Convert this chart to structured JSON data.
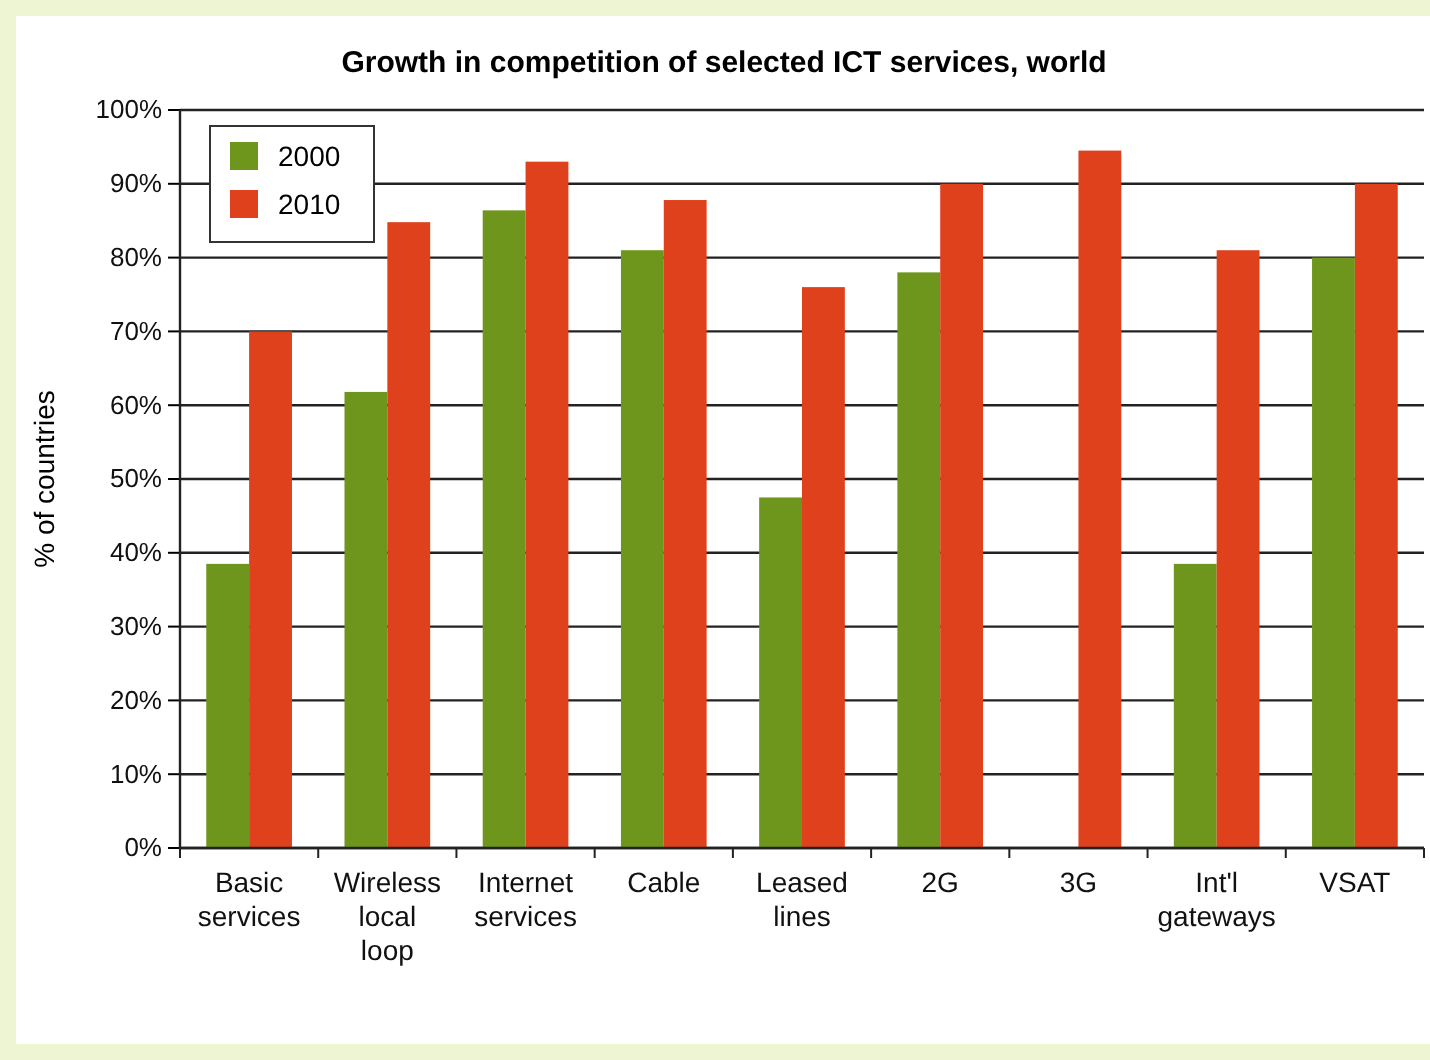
{
  "chart_data": {
    "type": "bar",
    "title": "Growth in competition of selected ICT services, world",
    "ylabel": "% of countries",
    "categories": [
      "Basic services",
      "Wireless local loop",
      "Internet services",
      "Cable",
      "Leased lines",
      "2G",
      "3G",
      "Int'l gateways",
      "VSAT"
    ],
    "series": [
      {
        "name": "2000",
        "color": "#6f961c",
        "values": [
          38.5,
          61.8,
          86.4,
          81,
          47.5,
          78,
          null,
          38.5,
          80
        ]
      },
      {
        "name": "2010",
        "color": "#de411b",
        "values": [
          70,
          84.8,
          93,
          87.8,
          76,
          90,
          94.5,
          81,
          90
        ]
      }
    ],
    "ylim": [
      0,
      100
    ],
    "yticks": [
      {
        "value": 0,
        "label": "0%"
      },
      {
        "value": 10,
        "label": "10%"
      },
      {
        "value": 20,
        "label": "20%"
      },
      {
        "value": 30,
        "label": "30%"
      },
      {
        "value": 40,
        "label": "40%"
      },
      {
        "value": 50,
        "label": "50%"
      },
      {
        "value": 60,
        "label": "60%"
      },
      {
        "value": 70,
        "label": "70%"
      },
      {
        "value": 80,
        "label": "80%"
      },
      {
        "value": 90,
        "label": "90%"
      },
      {
        "value": 100,
        "label": "100%"
      }
    ],
    "grid": "y",
    "legend": "top left"
  }
}
